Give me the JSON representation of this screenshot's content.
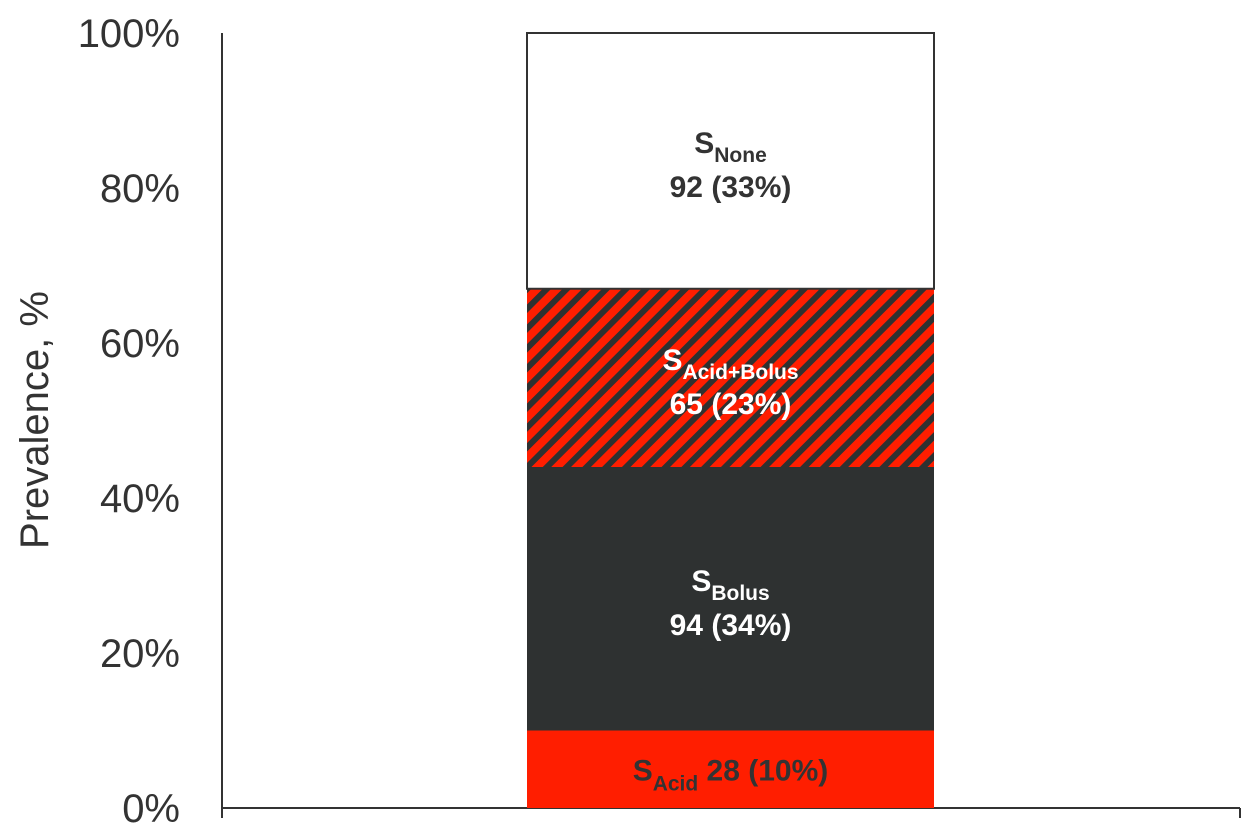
{
  "chart_data": {
    "type": "bar",
    "stacked": true,
    "ylabel": "Prevalence, %",
    "ylim": [
      0,
      100
    ],
    "yticks": [
      "0%",
      "20%",
      "40%",
      "60%",
      "80%",
      "100%"
    ],
    "ytick_values": [
      0,
      20,
      40,
      60,
      80,
      100
    ],
    "grid": false,
    "segments": [
      {
        "prefix": "S",
        "subscript": "Acid",
        "count": "28",
        "percent_text": "(10%)",
        "value": 10,
        "fill": "#ff1e00",
        "pattern": "solid",
        "text_color": "#333333",
        "label_layout": "inline"
      },
      {
        "prefix": "S",
        "subscript": "Bolus",
        "count": "94",
        "percent_text": "(34%)",
        "value": 34,
        "fill": "#2e3131",
        "pattern": "solid",
        "text_color": "#ffffff",
        "label_layout": "stacked"
      },
      {
        "prefix": "S",
        "subscript": "Acid+Bolus",
        "count": "65",
        "percent_text": "(23%)",
        "value": 23,
        "fill": "#ff1e00",
        "stripe_color": "#2e3131",
        "pattern": "hatch",
        "text_color": "#ffffff",
        "label_layout": "stacked"
      },
      {
        "prefix": "S",
        "subscript": "None",
        "count": "92",
        "percent_text": "(33%)",
        "value": 33,
        "fill": "#ffffff",
        "pattern": "solid",
        "text_color": "#333333",
        "label_layout": "stacked"
      }
    ]
  }
}
